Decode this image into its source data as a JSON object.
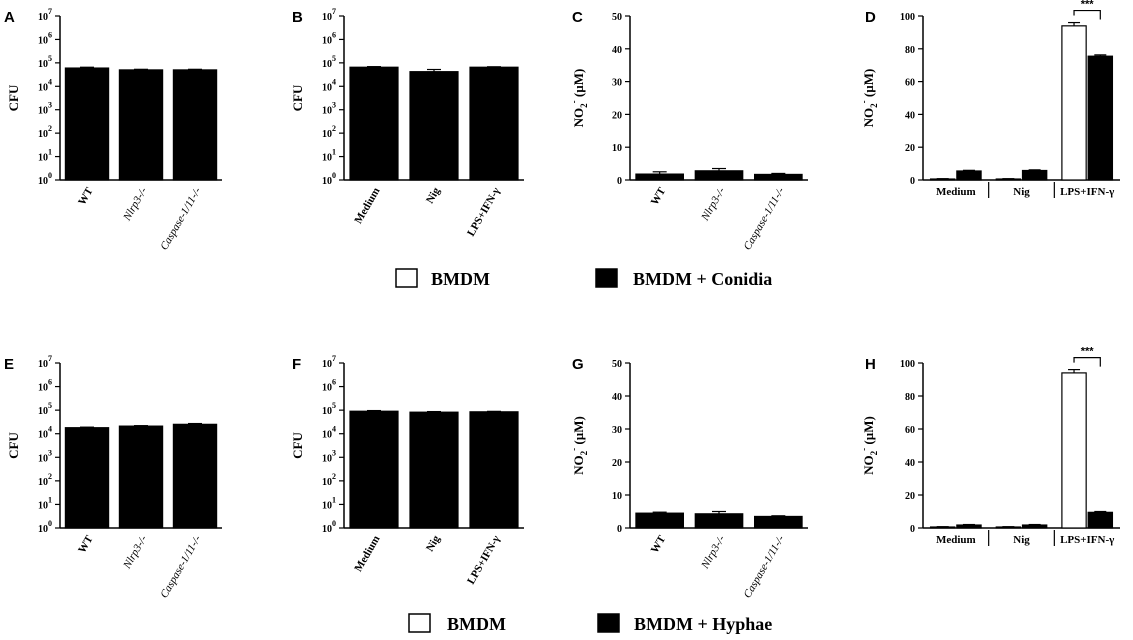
{
  "figure": {
    "legend_top": {
      "white_label": "BMDM",
      "black_label": "BMDM + Conidia"
    },
    "legend_bottom": {
      "white_label": "BMDM",
      "black_label": "BMDM + Hyphae"
    }
  },
  "chart_data": [
    {
      "panel": "A",
      "type": "bar",
      "ylabel": "CFU",
      "yscale": "log",
      "ylim": [
        1,
        10000000
      ],
      "yticks": [
        {
          "base": "10",
          "exp": "0"
        },
        {
          "base": "10",
          "exp": "1"
        },
        {
          "base": "10",
          "exp": "2"
        },
        {
          "base": "10",
          "exp": "3"
        },
        {
          "base": "10",
          "exp": "4"
        },
        {
          "base": "10",
          "exp": "5"
        },
        {
          "base": "10",
          "exp": "6"
        },
        {
          "base": "10",
          "exp": "7"
        }
      ],
      "categories": [
        "WT",
        "Nlrp3-/-",
        "Caspase-1/11-/-"
      ],
      "category_italic": [
        false,
        true,
        true
      ],
      "series": [
        {
          "color": "#000000",
          "values": [
            60000,
            50000,
            50000
          ],
          "errors": [
            5000,
            3000,
            3000
          ]
        }
      ]
    },
    {
      "panel": "B",
      "type": "bar",
      "ylabel": "CFU",
      "yscale": "log",
      "ylim": [
        1,
        10000000
      ],
      "yticks": [
        {
          "base": "10",
          "exp": "0"
        },
        {
          "base": "10",
          "exp": "1"
        },
        {
          "base": "10",
          "exp": "2"
        },
        {
          "base": "10",
          "exp": "3"
        },
        {
          "base": "10",
          "exp": "4"
        },
        {
          "base": "10",
          "exp": "5"
        },
        {
          "base": "10",
          "exp": "6"
        },
        {
          "base": "10",
          "exp": "7"
        }
      ],
      "categories": [
        "Medium",
        "Nig",
        "LPS+IFN-γ"
      ],
      "category_italic": [
        false,
        false,
        false
      ],
      "series": [
        {
          "color": "#000000",
          "values": [
            65000,
            42000,
            65000
          ],
          "errors": [
            4000,
            10000,
            3000
          ]
        }
      ]
    },
    {
      "panel": "C",
      "type": "bar",
      "ylabel_main": "NO",
      "ylabel_sub": "2",
      "ylabel_sup": "-",
      "ylabel_unit": " (µM)",
      "yscale": "linear",
      "ylim": [
        0,
        50
      ],
      "yticks": [
        {
          "base": "0"
        },
        {
          "base": "10"
        },
        {
          "base": "20"
        },
        {
          "base": "30"
        },
        {
          "base": "40"
        },
        {
          "base": "50"
        }
      ],
      "categories": [
        "WT",
        "Nlrp3-/-",
        "Caspase-1/11-/-"
      ],
      "category_italic": [
        false,
        true,
        true
      ],
      "series": [
        {
          "color": "#000000",
          "values": [
            1.8,
            2.8,
            1.7
          ],
          "errors": [
            0.7,
            0.7,
            0.3
          ]
        }
      ]
    },
    {
      "panel": "D",
      "type": "bar",
      "ylabel_main": "NO",
      "ylabel_sub": "2",
      "ylabel_sup": "-",
      "ylabel_unit": " (µM)",
      "yscale": "linear",
      "ylim": [
        0,
        100
      ],
      "yticks": [
        {
          "base": "0"
        },
        {
          "base": "20"
        },
        {
          "base": "40"
        },
        {
          "base": "60"
        },
        {
          "base": "80"
        },
        {
          "base": "100"
        }
      ],
      "categories": [
        "Medium",
        "Nig",
        "LPS+IFN-γ"
      ],
      "category_italic": [
        false,
        false,
        false
      ],
      "series": [
        {
          "name": "BMDM",
          "color": "#ffffff",
          "values": [
            0.6,
            0.6,
            94
          ],
          "errors": [
            0.2,
            0.2,
            2
          ]
        },
        {
          "name": "BMDM + Conidia",
          "color": "#000000",
          "values": [
            5.5,
            5.8,
            75.5
          ],
          "errors": [
            0.4,
            0.4,
            0.8
          ]
        }
      ],
      "significance": {
        "label": "***",
        "category": 2
      }
    },
    {
      "panel": "E",
      "type": "bar",
      "ylabel": "CFU",
      "yscale": "log",
      "ylim": [
        1,
        10000000
      ],
      "yticks": [
        {
          "base": "10",
          "exp": "0"
        },
        {
          "base": "10",
          "exp": "1"
        },
        {
          "base": "10",
          "exp": "2"
        },
        {
          "base": "10",
          "exp": "3"
        },
        {
          "base": "10",
          "exp": "4"
        },
        {
          "base": "10",
          "exp": "5"
        },
        {
          "base": "10",
          "exp": "6"
        },
        {
          "base": "10",
          "exp": "7"
        }
      ],
      "categories": [
        "WT",
        "Nlrp3-/-",
        "Caspase-1/11-/-"
      ],
      "category_italic": [
        false,
        true,
        true
      ],
      "series": [
        {
          "color": "#000000",
          "values": [
            18000,
            21000,
            25000
          ],
          "errors": [
            1000,
            1000,
            2000
          ]
        }
      ]
    },
    {
      "panel": "F",
      "type": "bar",
      "ylabel": "CFU",
      "yscale": "log",
      "ylim": [
        1,
        10000000
      ],
      "yticks": [
        {
          "base": "10",
          "exp": "0"
        },
        {
          "base": "10",
          "exp": "1"
        },
        {
          "base": "10",
          "exp": "2"
        },
        {
          "base": "10",
          "exp": "3"
        },
        {
          "base": "10",
          "exp": "4"
        },
        {
          "base": "10",
          "exp": "5"
        },
        {
          "base": "10",
          "exp": "6"
        },
        {
          "base": "10",
          "exp": "7"
        }
      ],
      "categories": [
        "Medium",
        "Nig",
        "LPS+IFN-γ"
      ],
      "category_italic": [
        false,
        false,
        false
      ],
      "series": [
        {
          "color": "#000000",
          "values": [
            90000,
            82000,
            85000
          ],
          "errors": [
            6000,
            5000,
            4000
          ]
        }
      ]
    },
    {
      "panel": "G",
      "type": "bar",
      "ylabel_main": "NO",
      "ylabel_sub": "2",
      "ylabel_sup": "-",
      "ylabel_unit": " (µM)",
      "yscale": "linear",
      "ylim": [
        0,
        50
      ],
      "yticks": [
        {
          "base": "0"
        },
        {
          "base": "10"
        },
        {
          "base": "20"
        },
        {
          "base": "30"
        },
        {
          "base": "40"
        },
        {
          "base": "50"
        }
      ],
      "categories": [
        "WT",
        "Nlrp3-/-",
        "Caspase-1/11-/-"
      ],
      "category_italic": [
        false,
        true,
        true
      ],
      "series": [
        {
          "color": "#000000",
          "values": [
            4.5,
            4.3,
            3.5
          ],
          "errors": [
            0.3,
            0.7,
            0.2
          ]
        }
      ]
    },
    {
      "panel": "H",
      "type": "bar",
      "ylabel_main": "NO",
      "ylabel_sub": "2",
      "ylabel_sup": "-",
      "ylabel_unit": " (µM)",
      "yscale": "linear",
      "ylim": [
        0,
        100
      ],
      "yticks": [
        {
          "base": "0"
        },
        {
          "base": "20"
        },
        {
          "base": "40"
        },
        {
          "base": "60"
        },
        {
          "base": "80"
        },
        {
          "base": "100"
        }
      ],
      "categories": [
        "Medium",
        "Nig",
        "LPS+IFN-γ"
      ],
      "category_italic": [
        false,
        false,
        false
      ],
      "series": [
        {
          "name": "BMDM",
          "color": "#ffffff",
          "values": [
            0.6,
            0.6,
            94
          ],
          "errors": [
            0.2,
            0.2,
            2
          ]
        },
        {
          "name": "BMDM + Hyphae",
          "color": "#000000",
          "values": [
            1.8,
            1.8,
            9.5
          ],
          "errors": [
            0.3,
            0.3,
            0.5
          ]
        }
      ],
      "significance": {
        "label": "***",
        "category": 2
      }
    }
  ]
}
